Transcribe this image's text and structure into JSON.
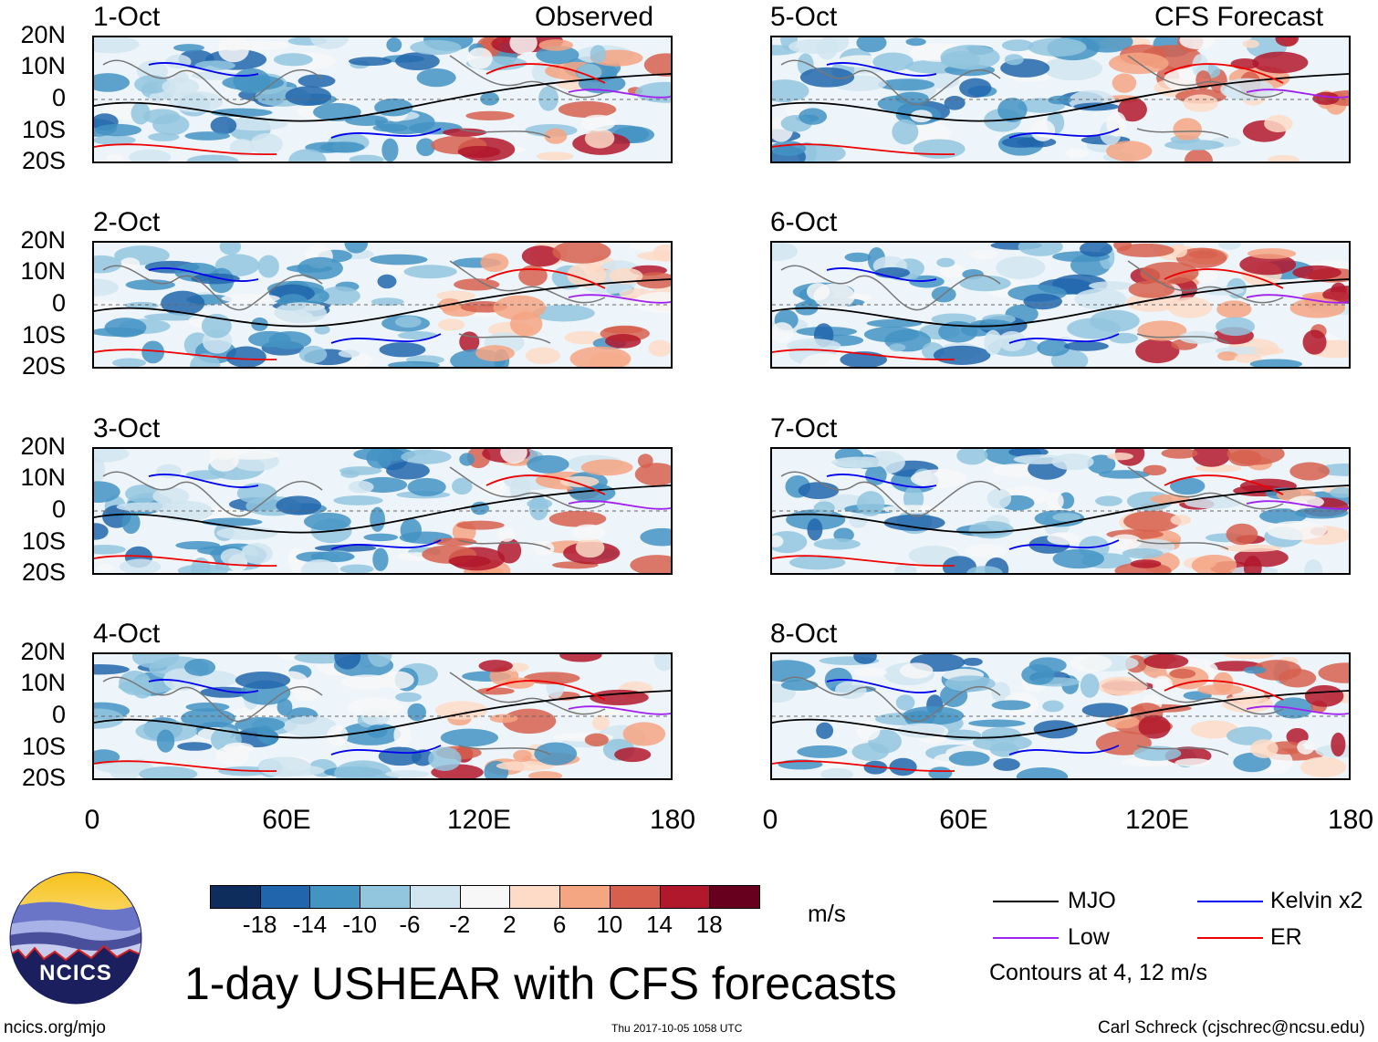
{
  "title": "1-day USHEAR with CFS forecasts",
  "left_header": "Observed",
  "right_header": "CFS Forecast",
  "panels": {
    "left": [
      "1-Oct",
      "2-Oct",
      "3-Oct",
      "4-Oct"
    ],
    "right": [
      "5-Oct",
      "6-Oct",
      "7-Oct",
      "8-Oct"
    ]
  },
  "lat_labels": [
    "20N",
    "10N",
    "0",
    "10S",
    "20S"
  ],
  "lon_labels": [
    "0",
    "60E",
    "120E",
    "180"
  ],
  "colorbar": {
    "labels": [
      "-18",
      "-14",
      "-10",
      "-6",
      "-2",
      "2",
      "6",
      "10",
      "14",
      "18"
    ],
    "colors": [
      "#0f2d5c",
      "#2166ac",
      "#4393c3",
      "#92c5de",
      "#d1e5f0",
      "#f7f7f7",
      "#fddbc7",
      "#f4a582",
      "#d6604d",
      "#b2182b",
      "#67001f"
    ],
    "unit": "m/s"
  },
  "legend": {
    "items": [
      {
        "label": "MJO",
        "color": "#000000"
      },
      {
        "label": "Kelvin x2",
        "color": "#0000ee"
      },
      {
        "label": "Low",
        "color": "#a020f0"
      },
      {
        "label": "ER",
        "color": "#ee0000"
      }
    ],
    "contours_note": "Contours at 4, 12 m/s"
  },
  "logo": {
    "text": "NCICS"
  },
  "footer": {
    "left": "ncics.org/mjo",
    "center": "Thu 2017-10-05 1058 UTC",
    "right": "Carl Schreck (cjschrec@ncsu.edu)"
  }
}
